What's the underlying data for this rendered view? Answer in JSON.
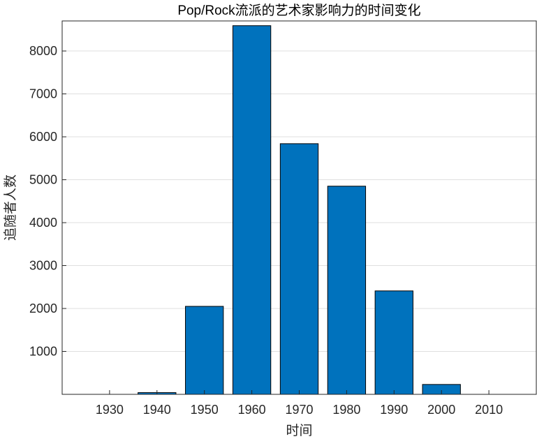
{
  "chart_data": {
    "type": "bar",
    "title": "Pop/Rock流派的艺术家影响力的时间变化",
    "xlabel": "时间",
    "ylabel": "追随者人数",
    "categories": [
      "1930",
      "1940",
      "1950",
      "1960",
      "1970",
      "1980",
      "1990",
      "2000",
      "2010"
    ],
    "values": [
      0,
      40,
      2050,
      8590,
      5840,
      4850,
      2410,
      230,
      0
    ],
    "ylim": [
      0,
      8700
    ],
    "yticks": [
      1000,
      2000,
      3000,
      4000,
      5000,
      6000,
      7000,
      8000
    ],
    "grid": true,
    "bar_color": "#0072BD",
    "bar_edge_color": "#000000"
  }
}
